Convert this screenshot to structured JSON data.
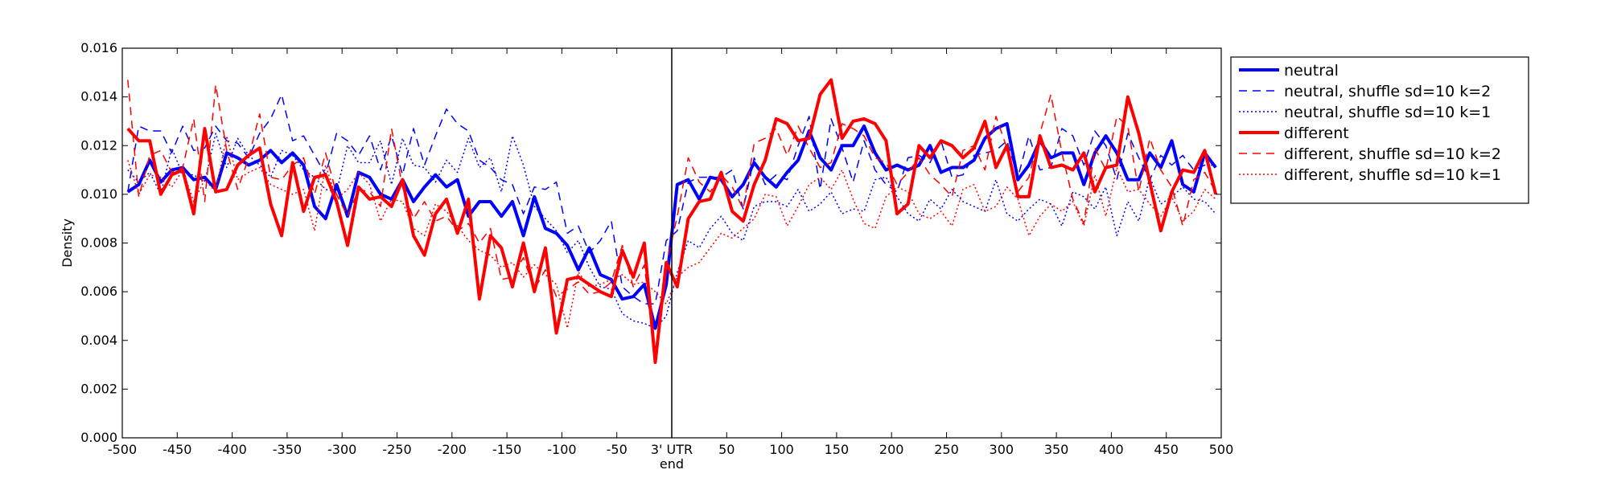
{
  "chart_data": {
    "type": "line",
    "title": "",
    "xlabel": "end",
    "ylabel": "Density",
    "xlim": [
      -500,
      500
    ],
    "ylim": [
      0,
      0.016
    ],
    "x_ticks": [
      -500,
      -450,
      -400,
      -350,
      -300,
      -250,
      -200,
      -150,
      -100,
      -50,
      0,
      50,
      100,
      150,
      200,
      250,
      300,
      350,
      400,
      450,
      500
    ],
    "x_tick_labels": [
      "-500",
      "-450",
      "-400",
      "-350",
      "-300",
      "-250",
      "-200",
      "-150",
      "-100",
      "-50",
      "3' UTR",
      "50",
      "100",
      "150",
      "200",
      "250",
      "300",
      "350",
      "400",
      "450",
      "500"
    ],
    "y_ticks": [
      0,
      0.002,
      0.004,
      0.006,
      0.008,
      0.01,
      0.012,
      0.014,
      0.016
    ],
    "y_tick_labels": [
      "0.000",
      "0.002",
      "0.004",
      "0.006",
      "0.008",
      "0.010",
      "0.012",
      "0.014",
      "0.016"
    ],
    "vline_x": 0,
    "grid": false,
    "legend_position": "outside-top-right",
    "x": [
      -495,
      -485,
      -475,
      -465,
      -455,
      -445,
      -435,
      -425,
      -415,
      -405,
      -395,
      -385,
      -375,
      -365,
      -355,
      -345,
      -335,
      -325,
      -315,
      -305,
      -295,
      -285,
      -275,
      -265,
      -255,
      -245,
      -235,
      -225,
      -215,
      -205,
      -195,
      -185,
      -175,
      -165,
      -155,
      -145,
      -135,
      -125,
      -115,
      -105,
      -95,
      -85,
      -75,
      -65,
      -55,
      -45,
      -35,
      -25,
      -15,
      -5,
      5,
      15,
      25,
      35,
      45,
      55,
      65,
      75,
      85,
      95,
      105,
      115,
      125,
      135,
      145,
      155,
      165,
      175,
      185,
      195,
      205,
      215,
      225,
      235,
      245,
      255,
      265,
      275,
      285,
      295,
      305,
      315,
      325,
      335,
      345,
      355,
      365,
      375,
      385,
      395,
      405,
      415,
      425,
      435,
      445,
      455,
      465,
      475,
      485,
      495
    ],
    "series": [
      {
        "name": "neutral",
        "color": "#0000ff",
        "style": "solid",
        "width": 4,
        "values": [
          0.0101,
          0.0104,
          0.0114,
          0.0105,
          0.011,
          0.0111,
          0.0106,
          0.0107,
          0.0102,
          0.0117,
          0.0115,
          0.0112,
          0.0114,
          0.0118,
          0.0113,
          0.0117,
          0.0112,
          0.0095,
          0.009,
          0.0104,
          0.0091,
          0.0109,
          0.0107,
          0.01,
          0.0098,
          0.0106,
          0.0097,
          0.0103,
          0.0108,
          0.0103,
          0.0106,
          0.0091,
          0.0097,
          0.0097,
          0.0091,
          0.0097,
          0.0083,
          0.0099,
          0.0086,
          0.0084,
          0.0079,
          0.0069,
          0.0078,
          0.0067,
          0.0065,
          0.0057,
          0.0058,
          0.0063,
          0.0045,
          0.0063,
          0.0104,
          0.0106,
          0.0098,
          0.0107,
          0.0106,
          0.0099,
          0.0104,
          0.0113,
          0.0107,
          0.0103,
          0.0109,
          0.0114,
          0.0126,
          0.0115,
          0.011,
          0.012,
          0.012,
          0.0128,
          0.0117,
          0.011,
          0.0112,
          0.011,
          0.0112,
          0.012,
          0.0109,
          0.0111,
          0.0111,
          0.0114,
          0.0123,
          0.0127,
          0.0129,
          0.0106,
          0.0112,
          0.0122,
          0.0115,
          0.0117,
          0.0117,
          0.0104,
          0.0117,
          0.0124,
          0.0117,
          0.0106,
          0.0106,
          0.0117,
          0.0111,
          0.0122,
          0.0104,
          0.0101,
          0.0117,
          0.0111
        ]
      },
      {
        "name": "neutral, shuffle sd=10 k=2",
        "color": "#0000ff",
        "style": "dashed",
        "width": 1.5,
        "values": [
          0.0101,
          0.0128,
          0.0126,
          0.0126,
          0.0117,
          0.0128,
          0.0118,
          0.0119,
          0.0128,
          0.0122,
          0.0121,
          0.0115,
          0.0125,
          0.0131,
          0.0141,
          0.0122,
          0.0124,
          0.0116,
          0.0108,
          0.0125,
          0.0122,
          0.0116,
          0.0124,
          0.011,
          0.0124,
          0.0108,
          0.0127,
          0.0112,
          0.0124,
          0.0135,
          0.0129,
          0.0126,
          0.0114,
          0.0111,
          0.0106,
          0.0104,
          0.0092,
          0.0103,
          0.0102,
          0.0105,
          0.0084,
          0.0087,
          0.0076,
          0.0081,
          0.0089,
          0.0062,
          0.0058,
          0.0055,
          0.0055,
          0.0081,
          0.0085,
          0.0105,
          0.0107,
          0.0107,
          0.0107,
          0.011,
          0.0094,
          0.0115,
          0.0104,
          0.0108,
          0.0106,
          0.012,
          0.0132,
          0.0102,
          0.0131,
          0.0119,
          0.0105,
          0.0122,
          0.011,
          0.0104,
          0.0101,
          0.0115,
          0.0116,
          0.0113,
          0.0122,
          0.0107,
          0.0108,
          0.0116,
          0.0117,
          0.0118,
          0.0122,
          0.0107,
          0.0124,
          0.011,
          0.0111,
          0.0127,
          0.0124,
          0.0112,
          0.0126,
          0.012,
          0.0106,
          0.0125,
          0.0115,
          0.0106,
          0.0116,
          0.0112,
          0.0116,
          0.011,
          0.0112,
          0.0112
        ]
      },
      {
        "name": "neutral, shuffle sd=10 k=1",
        "color": "#0000ff",
        "style": "dotted",
        "width": 1.5,
        "values": [
          0.011,
          0.0105,
          0.0109,
          0.01,
          0.0119,
          0.0108,
          0.0108,
          0.0105,
          0.0125,
          0.0111,
          0.0123,
          0.0116,
          0.0112,
          0.0107,
          0.0118,
          0.0116,
          0.011,
          0.0107,
          0.0102,
          0.0101,
          0.012,
          0.0113,
          0.0113,
          0.0122,
          0.0104,
          0.0123,
          0.0112,
          0.0111,
          0.0105,
          0.0114,
          0.0109,
          0.0123,
          0.0111,
          0.0115,
          0.0101,
          0.0124,
          0.0112,
          0.0095,
          0.009,
          0.0085,
          0.0076,
          0.0081,
          0.007,
          0.0062,
          0.0061,
          0.0051,
          0.0048,
          0.0047,
          0.0045,
          0.005,
          0.0068,
          0.0081,
          0.0078,
          0.0086,
          0.0091,
          0.0084,
          0.0081,
          0.0095,
          0.0097,
          0.0097,
          0.0095,
          0.0102,
          0.0093,
          0.0096,
          0.0101,
          0.0092,
          0.0094,
          0.0093,
          0.0106,
          0.0107,
          0.0099,
          0.0092,
          0.0089,
          0.0098,
          0.0094,
          0.0102,
          0.0097,
          0.0095,
          0.0093,
          0.0106,
          0.0092,
          0.0089,
          0.0094,
          0.0098,
          0.0096,
          0.0087,
          0.0101,
          0.0099,
          0.0094,
          0.0103,
          0.0083,
          0.0097,
          0.0089,
          0.0107,
          0.0096,
          0.0099,
          0.0103,
          0.0098,
          0.0097,
          0.0092
        ]
      },
      {
        "name": "different",
        "color": "#ff0000",
        "style": "solid",
        "width": 4,
        "values": [
          0.0127,
          0.0122,
          0.0122,
          0.01,
          0.0108,
          0.011,
          0.0092,
          0.0127,
          0.0101,
          0.0102,
          0.0112,
          0.0116,
          0.0119,
          0.0096,
          0.0083,
          0.0113,
          0.0093,
          0.0107,
          0.0108,
          0.0097,
          0.0079,
          0.0103,
          0.0098,
          0.0099,
          0.0095,
          0.0106,
          0.0083,
          0.0075,
          0.0092,
          0.0098,
          0.0084,
          0.0098,
          0.0057,
          0.0083,
          0.0078,
          0.0062,
          0.008,
          0.006,
          0.0078,
          0.0043,
          0.0065,
          0.0066,
          0.0063,
          0.006,
          0.0058,
          0.0077,
          0.0066,
          0.008,
          0.0031,
          0.0072,
          0.0062,
          0.009,
          0.0097,
          0.0098,
          0.0109,
          0.0093,
          0.0089,
          0.0104,
          0.0114,
          0.0131,
          0.0129,
          0.0122,
          0.0123,
          0.0141,
          0.0147,
          0.0123,
          0.013,
          0.0131,
          0.0129,
          0.0122,
          0.0092,
          0.0096,
          0.012,
          0.0115,
          0.0122,
          0.012,
          0.0115,
          0.0119,
          0.013,
          0.0111,
          0.012,
          0.0099,
          0.0099,
          0.0124,
          0.0111,
          0.0112,
          0.011,
          0.0117,
          0.0101,
          0.0111,
          0.0112,
          0.014,
          0.0125,
          0.0105,
          0.0085,
          0.0101,
          0.011,
          0.0109,
          0.0118,
          0.01
        ]
      },
      {
        "name": "different, shuffle sd=10 k=2",
        "color": "#ff0000",
        "style": "dashed",
        "width": 1.5,
        "values": [
          0.0147,
          0.0099,
          0.0116,
          0.0118,
          0.0109,
          0.0111,
          0.0131,
          0.0097,
          0.0145,
          0.0118,
          0.0102,
          0.0115,
          0.0133,
          0.0107,
          0.0106,
          0.0112,
          0.0115,
          0.01,
          0.0117,
          0.01,
          0.0091,
          0.0102,
          0.0101,
          0.0095,
          0.0127,
          0.0103,
          0.009,
          0.0097,
          0.0089,
          0.0091,
          0.0085,
          0.0088,
          0.008,
          0.0086,
          0.0065,
          0.0066,
          0.0074,
          0.0061,
          0.0069,
          0.0058,
          0.0061,
          0.0064,
          0.0059,
          0.006,
          0.0064,
          0.0079,
          0.0062,
          0.0071,
          0.0035,
          0.0071,
          0.0091,
          0.0115,
          0.0105,
          0.0101,
          0.0108,
          0.0103,
          0.0094,
          0.0121,
          0.0123,
          0.0127,
          0.0116,
          0.0128,
          0.0119,
          0.0111,
          0.0113,
          0.0129,
          0.0127,
          0.0124,
          0.0115,
          0.0113,
          0.0104,
          0.0109,
          0.0115,
          0.0108,
          0.0104,
          0.0099,
          0.0118,
          0.012,
          0.011,
          0.0132,
          0.0119,
          0.0101,
          0.0107,
          0.0125,
          0.0141,
          0.0117,
          0.0098,
          0.0088,
          0.0119,
          0.011,
          0.0132,
          0.0128,
          0.0101,
          0.0123,
          0.011,
          0.0103,
          0.0087,
          0.0106,
          0.0109,
          0.0101
        ]
      },
      {
        "name": "different, shuffle sd=10 k=1",
        "color": "#ff0000",
        "style": "dotted",
        "width": 1.5,
        "values": [
          0.0114,
          0.01,
          0.0108,
          0.0107,
          0.0103,
          0.011,
          0.0097,
          0.0106,
          0.0101,
          0.0124,
          0.0106,
          0.0109,
          0.0111,
          0.0104,
          0.0102,
          0.01,
          0.0102,
          0.0085,
          0.0112,
          0.0098,
          0.0102,
          0.0109,
          0.0104,
          0.0089,
          0.0098,
          0.0097,
          0.0086,
          0.0083,
          0.0096,
          0.0093,
          0.0087,
          0.0081,
          0.0077,
          0.0075,
          0.007,
          0.0072,
          0.0066,
          0.0071,
          0.0067,
          0.0063,
          0.0045,
          0.0068,
          0.0062,
          0.0063,
          0.0065,
          0.0067,
          0.0063,
          0.0064,
          0.006,
          0.0055,
          0.0066,
          0.007,
          0.0072,
          0.0078,
          0.0084,
          0.0082,
          0.0086,
          0.009,
          0.01,
          0.0099,
          0.0087,
          0.0095,
          0.0104,
          0.0107,
          0.0102,
          0.011,
          0.0098,
          0.0088,
          0.0086,
          0.0099,
          0.0103,
          0.0101,
          0.0092,
          0.009,
          0.0093,
          0.0087,
          0.0102,
          0.0104,
          0.0093,
          0.0095,
          0.0103,
          0.0098,
          0.0083,
          0.0091,
          0.0096,
          0.0093,
          0.0097,
          0.0087,
          0.0108,
          0.0091,
          0.0111,
          0.0101,
          0.0102,
          0.0096,
          0.0091,
          0.0099,
          0.0089,
          0.0093,
          0.0102,
          0.0098
        ]
      }
    ]
  }
}
